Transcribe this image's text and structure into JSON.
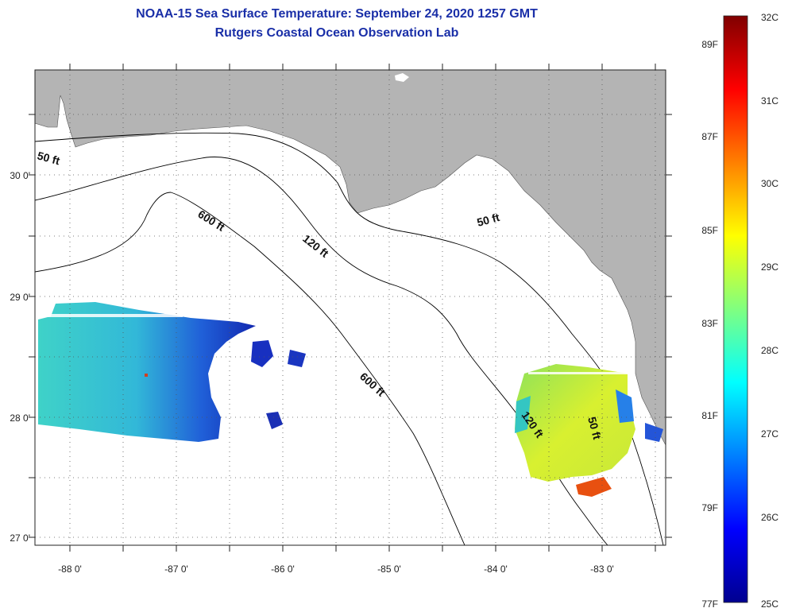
{
  "header": {
    "title": "NOAA-15 Sea Surface Temperature:  September 24, 2020 1257 GMT",
    "subtitle": "Rutgers Coastal Ocean Observation Lab"
  },
  "map": {
    "lon_ticks": [
      "-88 0'",
      "-87 0'",
      "-86 0'",
      "-85 0'",
      "-84 0'",
      "-83 0'"
    ],
    "lat_ticks": [
      "30 0'",
      "29 0'",
      "28 0'",
      "27 0'"
    ],
    "contour_labels": [
      "50 ft",
      "600 ft",
      "120 ft",
      "50 ft",
      "600 ft",
      "120 ft",
      "50 ft"
    ],
    "land_color": "#b4b4b4",
    "ocean_color": "#ffffff"
  },
  "colorbar": {
    "fahrenheit_labels": [
      "89F",
      "87F",
      "85F",
      "83F",
      "81F",
      "79F",
      "77F"
    ],
    "celsius_labels": [
      "32C",
      "31C",
      "30C",
      "29C",
      "28C",
      "27C",
      "26C",
      "25C"
    ],
    "colors": [
      "#00008f",
      "#0000ff",
      "#0080ff",
      "#00ffff",
      "#80ff80",
      "#ffff00",
      "#ff8000",
      "#ff0000",
      "#800000"
    ]
  }
}
